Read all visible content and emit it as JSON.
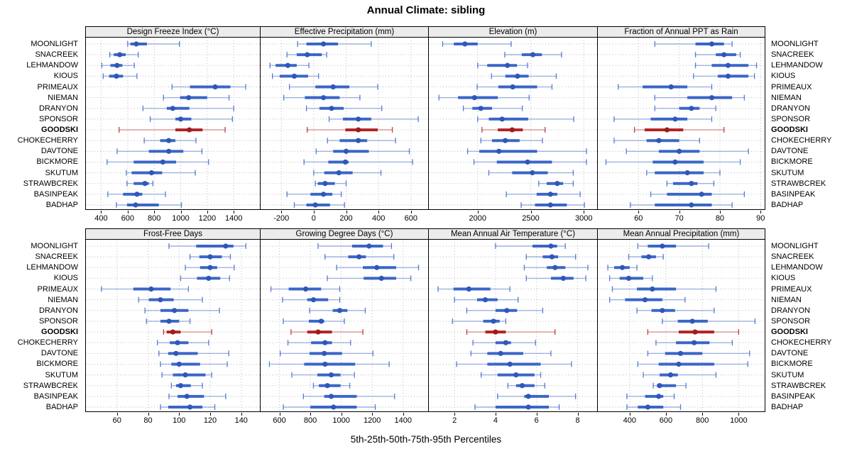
{
  "title": "Annual Climate: sibling",
  "caption": "5th-25th-50th-75th-95th Percentiles",
  "colors": {
    "series": "#3a66c8",
    "series_dot": "#2e57b8",
    "highlight": "#b22222",
    "highlight_dot": "#9e1c1c",
    "grid": "#bdbdbd",
    "strip_bg": "#ececec",
    "border": "#000000"
  },
  "chart_data": {
    "type": "scatter",
    "subtype": "percentile-interval-dotplot",
    "percentiles": [
      "5th",
      "25th",
      "50th",
      "75th",
      "95th"
    ],
    "legend_position": "none",
    "grid": "dotted",
    "site_labels": "both-sides",
    "rows": 2,
    "cols": 4,
    "sites": [
      "MOONLIGHT",
      "SNACREEK",
      "LEHMANDOW",
      "KIOUS",
      "PRIMEAUX",
      "NIEMAN",
      "DRANYON",
      "SPONSOR",
      "GOODSKI",
      "CHOKECHERRY",
      "DAVTONE",
      "BICKMORE",
      "SKUTUM",
      "STRAWBCREK",
      "BASINPEAK",
      "BADHAP"
    ],
    "highlight_site": "GOODSKI",
    "panels": [
      {
        "title": "Design Freeze Index (°C)",
        "xlim": [
          285,
          1597
        ],
        "ticks": [
          400,
          600,
          800,
          1000,
          1200,
          1400
        ],
        "values": [
          [
            600,
            620,
            665,
            745,
            990
          ],
          [
            465,
            495,
            540,
            585,
            680
          ],
          [
            405,
            470,
            520,
            560,
            650
          ],
          [
            415,
            460,
            515,
            565,
            670
          ],
          [
            935,
            1070,
            1260,
            1375,
            1490
          ],
          [
            870,
            995,
            1060,
            1200,
            1365
          ],
          [
            715,
            895,
            940,
            1065,
            1400
          ],
          [
            770,
            960,
            1000,
            1080,
            1390
          ],
          [
            535,
            960,
            1065,
            1165,
            1335
          ],
          [
            725,
            845,
            910,
            960,
            1115
          ],
          [
            520,
            760,
            910,
            1020,
            1160
          ],
          [
            445,
            645,
            865,
            965,
            1210
          ],
          [
            590,
            630,
            780,
            860,
            1110
          ],
          [
            595,
            645,
            730,
            760,
            790
          ],
          [
            450,
            565,
            670,
            710,
            885
          ],
          [
            515,
            595,
            660,
            835,
            1005
          ]
        ]
      },
      {
        "title": "Effective Precipitation (mm)",
        "xlim": [
          -328,
          706
        ],
        "ticks": [
          -200,
          0,
          200,
          400,
          600
        ],
        "values": [
          [
            -100,
            -45,
            60,
            150,
            355
          ],
          [
            -165,
            -105,
            -40,
            50,
            80
          ],
          [
            -270,
            -235,
            -160,
            -105,
            -30
          ],
          [
            -255,
            -210,
            -120,
            -35,
            30
          ],
          [
            -150,
            10,
            120,
            220,
            395
          ],
          [
            -185,
            -55,
            60,
            160,
            285
          ],
          [
            -45,
            35,
            110,
            185,
            420
          ],
          [
            95,
            180,
            275,
            355,
            645
          ],
          [
            -40,
            195,
            275,
            395,
            485
          ],
          [
            85,
            160,
            275,
            330,
            505
          ],
          [
            15,
            120,
            200,
            340,
            590
          ],
          [
            -60,
            90,
            195,
            215,
            610
          ],
          [
            0,
            65,
            155,
            240,
            415
          ],
          [
            10,
            25,
            70,
            130,
            200
          ],
          [
            -165,
            -20,
            60,
            115,
            170
          ],
          [
            -120,
            -45,
            10,
            100,
            190
          ]
        ]
      },
      {
        "title": "Elevation (m)",
        "xlim": [
          1540,
          3125
        ],
        "ticks": [
          2000,
          2500,
          3000
        ],
        "values": [
          [
            1670,
            1775,
            1880,
            2000,
            2315
          ],
          [
            2255,
            2415,
            2520,
            2605,
            2790
          ],
          [
            2000,
            2090,
            2280,
            2370,
            2470
          ],
          [
            2130,
            2260,
            2375,
            2480,
            2740
          ],
          [
            1995,
            2195,
            2330,
            2560,
            2700
          ],
          [
            1635,
            1815,
            1970,
            2190,
            2485
          ],
          [
            1865,
            1950,
            2030,
            2135,
            2420
          ],
          [
            2000,
            2105,
            2230,
            2475,
            2905
          ],
          [
            2040,
            2190,
            2325,
            2425,
            2635
          ],
          [
            2030,
            2135,
            2260,
            2395,
            2610
          ],
          [
            1905,
            2015,
            2200,
            2560,
            3025
          ],
          [
            1965,
            2180,
            2470,
            2700,
            3025
          ],
          [
            2105,
            2325,
            2515,
            2660,
            2900
          ],
          [
            2575,
            2650,
            2750,
            2805,
            2900
          ],
          [
            2270,
            2555,
            2685,
            2750,
            2965
          ],
          [
            2410,
            2540,
            2685,
            2840,
            3005
          ]
        ]
      },
      {
        "title": "Fraction of Annual PPT as Rain",
        "xlim": [
          50,
          91
        ],
        "ticks": [
          60,
          70,
          80,
          90
        ],
        "values": [
          [
            64,
            74,
            78,
            81,
            83
          ],
          [
            74,
            79,
            81,
            84,
            85
          ],
          [
            74,
            78,
            82,
            87,
            89
          ],
          [
            73.5,
            79.5,
            82,
            87,
            88.5
          ],
          [
            55,
            61,
            68,
            72,
            78
          ],
          [
            64,
            72,
            78,
            83,
            86
          ],
          [
            64,
            70,
            73,
            75,
            79
          ],
          [
            54,
            63,
            69,
            72,
            78
          ],
          [
            59,
            61.5,
            67,
            71,
            81
          ],
          [
            54,
            62,
            65,
            70,
            75
          ],
          [
            57,
            65,
            70,
            75,
            87
          ],
          [
            52,
            63.5,
            69,
            76,
            85
          ],
          [
            62,
            64,
            72,
            76,
            80
          ],
          [
            67,
            68.5,
            73,
            74.5,
            78.5
          ],
          [
            63,
            67,
            75.5,
            78,
            86
          ],
          [
            58,
            64,
            73,
            78,
            83
          ]
        ]
      },
      {
        "title": "Frost-Free Days",
        "xlim": [
          40,
          152
        ],
        "ticks": [
          60,
          80,
          100,
          120,
          140
        ],
        "values": [
          [
            93.5,
            111,
            130,
            135,
            143
          ],
          [
            107,
            113,
            120,
            127.5,
            133
          ],
          [
            104,
            113.5,
            120,
            124.5,
            135.5
          ],
          [
            101,
            111.5,
            119,
            126.5,
            132.5
          ],
          [
            50,
            70.5,
            82,
            94.5,
            106
          ],
          [
            74,
            80.5,
            88,
            96.5,
            115
          ],
          [
            78,
            88,
            97,
            106,
            126
          ],
          [
            79,
            88,
            93.5,
            100,
            107
          ],
          [
            90,
            92,
            96,
            101,
            121
          ],
          [
            86,
            94,
            99,
            106,
            119
          ],
          [
            87,
            93,
            98,
            112,
            132
          ],
          [
            88,
            95,
            100,
            113.5,
            131
          ],
          [
            89,
            96,
            104,
            117,
            121
          ],
          [
            95,
            98,
            101,
            107.5,
            115
          ],
          [
            93.5,
            99,
            105,
            116,
            130
          ],
          [
            88,
            93,
            107,
            115,
            123
          ]
        ]
      },
      {
        "title": "Growing Degree Days (°C)",
        "xlim": [
          478,
          1562
        ],
        "ticks": [
          600,
          800,
          1000,
          1200,
          1400
        ],
        "values": [
          [
            850,
            1070,
            1180,
            1270,
            1325
          ],
          [
            895,
            1045,
            1115,
            1160,
            1340
          ],
          [
            970,
            1140,
            1230,
            1355,
            1500
          ],
          [
            910,
            1145,
            1260,
            1355,
            1450
          ],
          [
            545,
            660,
            770,
            870,
            990
          ],
          [
            620,
            780,
            820,
            915,
            990
          ],
          [
            795,
            945,
            990,
            1040,
            1155
          ],
          [
            625,
            790,
            870,
            890,
            1020
          ],
          [
            675,
            780,
            850,
            940,
            1140
          ],
          [
            655,
            805,
            895,
            940,
            1060
          ],
          [
            605,
            795,
            890,
            1005,
            1205
          ],
          [
            535,
            760,
            895,
            1090,
            1310
          ],
          [
            680,
            845,
            935,
            995,
            1085
          ],
          [
            820,
            855,
            910,
            995,
            1055
          ],
          [
            755,
            890,
            935,
            1100,
            1345
          ],
          [
            625,
            800,
            950,
            1100,
            1220
          ]
        ]
      },
      {
        "title": "Mean Annual Air Temperature (°C)",
        "xlim": [
          0.75,
          8.95
        ],
        "ticks": [
          2,
          4,
          6,
          8
        ],
        "values": [
          [
            4.0,
            5.8,
            6.7,
            7.0,
            7.4
          ],
          [
            5.5,
            6.3,
            6.75,
            7.05,
            7.9
          ],
          [
            5.4,
            6.5,
            6.9,
            7.4,
            8.5
          ],
          [
            5.5,
            6.7,
            7.3,
            7.8,
            8.4
          ],
          [
            1.2,
            1.95,
            2.7,
            3.75,
            4.7
          ],
          [
            2.0,
            3.1,
            3.5,
            4.1,
            5.1
          ],
          [
            2.6,
            4.0,
            4.55,
            5.05,
            6.3
          ],
          [
            1.9,
            3.4,
            3.9,
            4.2,
            4.5
          ],
          [
            2.6,
            3.5,
            4.0,
            4.5,
            6.9
          ],
          [
            2.9,
            4.0,
            4.5,
            4.75,
            5.95
          ],
          [
            2.8,
            3.6,
            4.25,
            5.35,
            6.7
          ],
          [
            2.1,
            3.6,
            4.7,
            6.2,
            7.7
          ],
          [
            3.3,
            4.1,
            5.0,
            5.9,
            6.2
          ],
          [
            4.6,
            5.0,
            5.3,
            5.9,
            6.4
          ],
          [
            4.1,
            5.4,
            5.6,
            6.6,
            7.9
          ],
          [
            3.0,
            4.0,
            5.6,
            6.6,
            7.1
          ]
        ]
      },
      {
        "title": "Mean Annual Precipitation (mm)",
        "xlim": [
          225,
          1143
        ],
        "ticks": [
          400,
          600,
          800,
          1000
        ],
        "values": [
          [
            445,
            500,
            580,
            655,
            835
          ],
          [
            395,
            465,
            505,
            545,
            585
          ],
          [
            280,
            315,
            360,
            400,
            440
          ],
          [
            290,
            345,
            395,
            475,
            525
          ],
          [
            305,
            440,
            525,
            655,
            875
          ],
          [
            290,
            375,
            485,
            580,
            705
          ],
          [
            440,
            520,
            580,
            650,
            865
          ],
          [
            580,
            665,
            745,
            830,
            1090
          ],
          [
            500,
            670,
            760,
            865,
            1000
          ],
          [
            545,
            655,
            755,
            840,
            965
          ],
          [
            500,
            595,
            680,
            800,
            1060
          ],
          [
            445,
            560,
            670,
            865,
            1050
          ],
          [
            475,
            565,
            625,
            665,
            875
          ],
          [
            530,
            550,
            565,
            655,
            710
          ],
          [
            385,
            485,
            560,
            585,
            645
          ],
          [
            385,
            445,
            500,
            585,
            680
          ]
        ]
      }
    ]
  }
}
